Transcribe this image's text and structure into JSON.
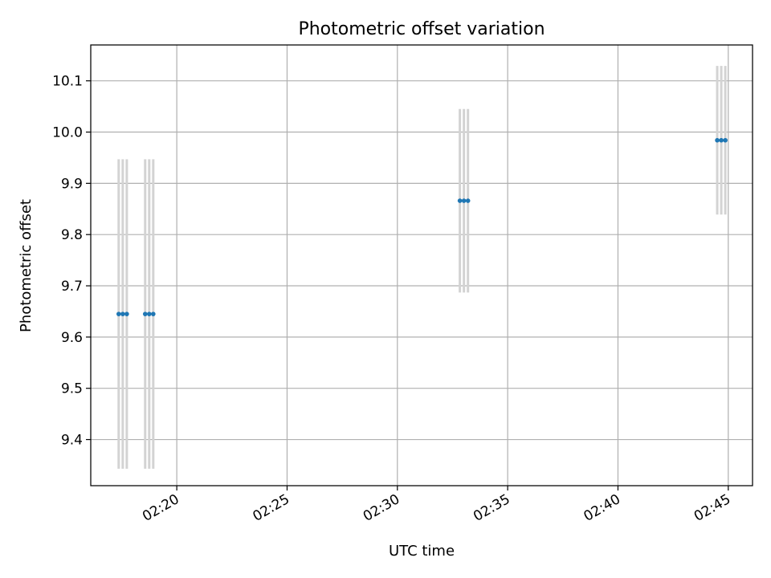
{
  "chart_data": {
    "type": "scatter",
    "title": "Photometric offset variation",
    "xlabel": "UTC time",
    "ylabel": "Photometric offset",
    "x_tick_labels": [
      "02:20",
      "02:25",
      "02:30",
      "02:35",
      "02:40",
      "02:45"
    ],
    "y_tick_labels": [
      "9.4",
      "9.5",
      "9.6",
      "9.7",
      "9.8",
      "9.9",
      "10.0",
      "10.1"
    ],
    "xlim": [
      "02:16:06",
      "02:46:06"
    ],
    "ylim": [
      9.31,
      10.17
    ],
    "grid": true,
    "points": [
      {
        "x": "02:17:22",
        "y": 9.645,
        "err": 0.302
      },
      {
        "x": "02:17:33",
        "y": 9.645,
        "err": 0.302
      },
      {
        "x": "02:17:44",
        "y": 9.645,
        "err": 0.302
      },
      {
        "x": "02:18:34",
        "y": 9.645,
        "err": 0.302
      },
      {
        "x": "02:18:45",
        "y": 9.645,
        "err": 0.302
      },
      {
        "x": "02:18:56",
        "y": 9.645,
        "err": 0.302
      },
      {
        "x": "02:32:50",
        "y": 9.866,
        "err": 0.179
      },
      {
        "x": "02:33:01",
        "y": 9.866,
        "err": 0.179
      },
      {
        "x": "02:33:12",
        "y": 9.866,
        "err": 0.179
      },
      {
        "x": "02:44:30",
        "y": 9.984,
        "err": 0.145
      },
      {
        "x": "02:44:41",
        "y": 9.984,
        "err": 0.145
      },
      {
        "x": "02:44:52",
        "y": 9.984,
        "err": 0.145
      }
    ],
    "colors": {
      "point": "#1f77b4",
      "errorbar": "#d3d3d3",
      "grid": "#b0b0b0",
      "axis": "#000000"
    }
  }
}
